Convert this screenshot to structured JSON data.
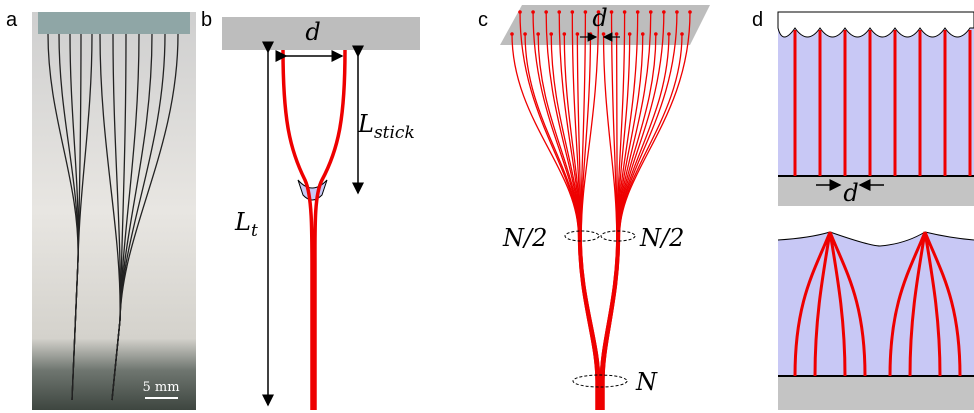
{
  "panels": [
    {
      "label": "a",
      "scale_bar": "5 mm"
    },
    {
      "label": "b",
      "spacing": "d",
      "stick_length": {
        "base": "L",
        "sub": "stick"
      },
      "total_length": {
        "base": "L",
        "sub": "t"
      }
    },
    {
      "label": "c",
      "spacing": "d",
      "bundle_left": "N/2",
      "bundle_right": "N/2",
      "bundle_full": "N"
    },
    {
      "label": "d",
      "spacing": "d"
    }
  ]
}
